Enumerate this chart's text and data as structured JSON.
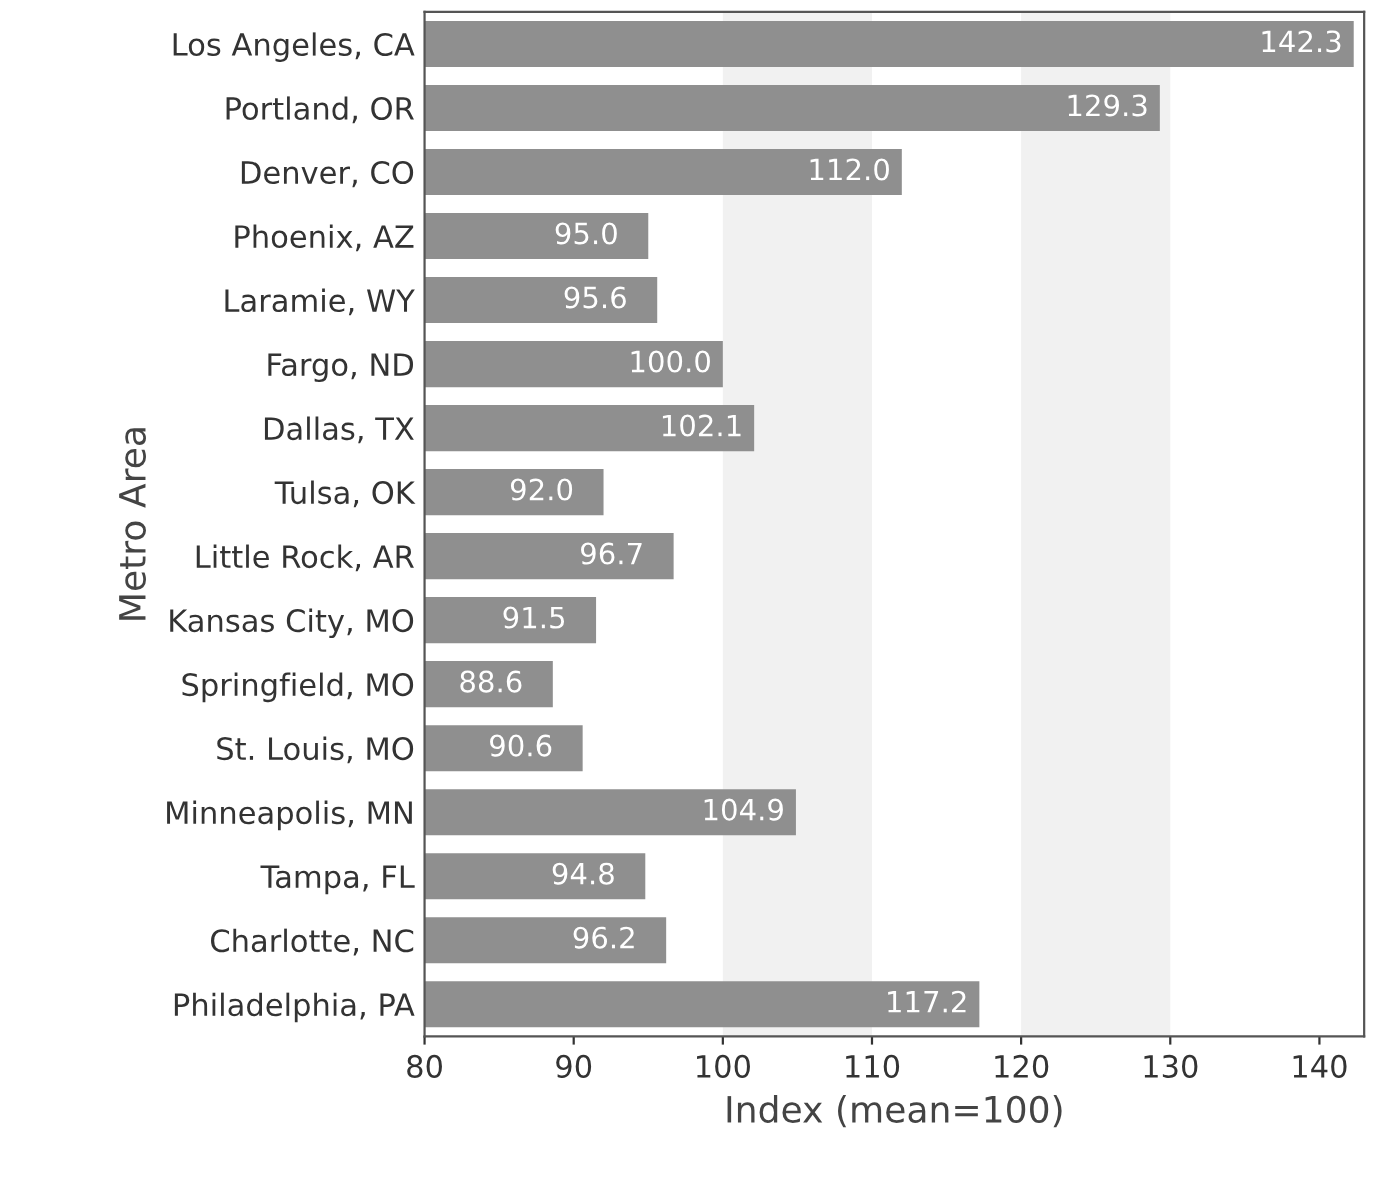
{
  "chart_data": {
    "type": "bar",
    "orientation": "horizontal",
    "xlabel": "Index (mean=100)",
    "ylabel": "Metro Area",
    "categories": [
      "Los Angeles, CA",
      "Portland, OR",
      "Denver, CO",
      "Phoenix, AZ",
      "Laramie, WY",
      "Fargo, ND",
      "Dallas, TX",
      "Tulsa, OK",
      "Little Rock, AR",
      "Kansas City, MO",
      "Springfield, MO",
      "St. Louis, MO",
      "Minneapolis, MN",
      "Tampa, FL",
      "Charlotte, NC",
      "Philadelphia, PA"
    ],
    "values": [
      142.3,
      129.3,
      112.0,
      95.0,
      95.6,
      100.0,
      102.1,
      92.0,
      96.7,
      91.5,
      88.6,
      90.6,
      104.9,
      94.8,
      96.2,
      117.2
    ],
    "value_labels": [
      "142.3",
      "129.3",
      "112.0",
      "95.0",
      "95.6",
      "100.0",
      "102.1",
      "92.0",
      "96.7",
      "91.5",
      "88.6",
      "90.6",
      "104.9",
      "94.8",
      "96.2",
      "117.2"
    ],
    "color": "#8f8f8f",
    "xlim": [
      80,
      143
    ],
    "xticks": [
      80,
      90,
      100,
      110,
      120,
      130,
      140
    ],
    "bands": [
      {
        "axis": "x",
        "from": 100,
        "to": 110,
        "color": "#f1f1f1"
      },
      {
        "axis": "x",
        "from": 120,
        "to": 130,
        "color": "#f1f1f1"
      }
    ],
    "grid": false
  }
}
